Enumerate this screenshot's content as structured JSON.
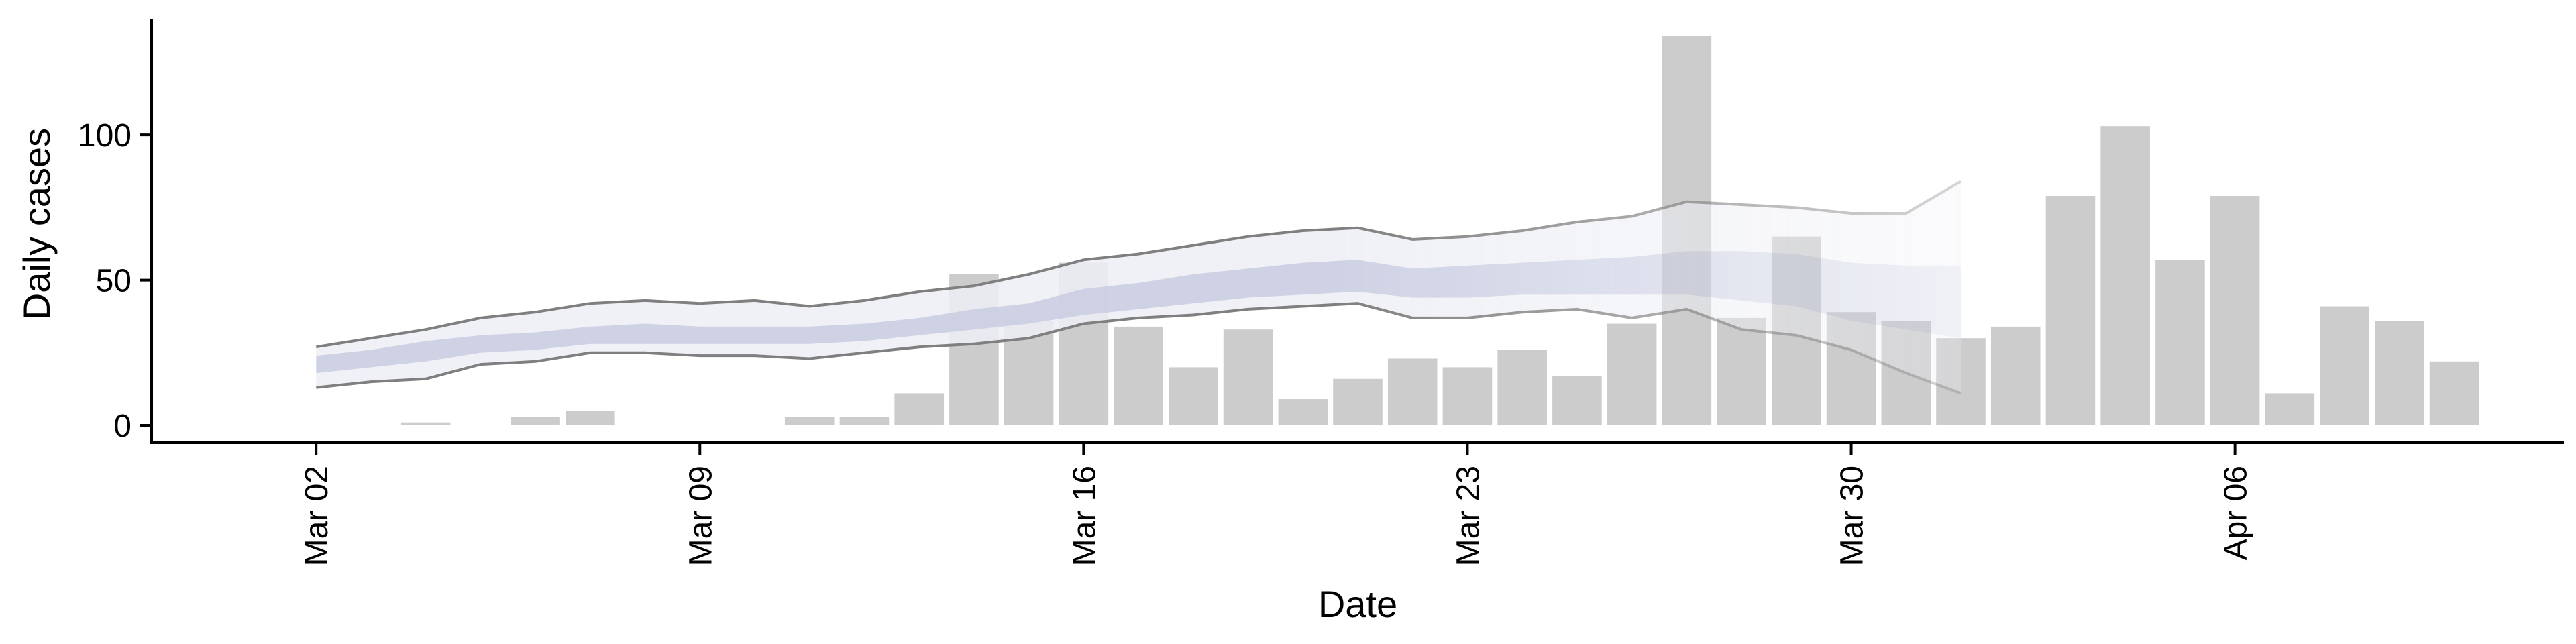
{
  "chart_data": {
    "type": "bar",
    "title": "",
    "xlabel": "Date",
    "ylabel": "Daily cases",
    "ylim": [
      -6,
      140
    ],
    "xlim": [
      "2020-02-28",
      "2020-04-12"
    ],
    "grid": false,
    "legend": "none",
    "y_ticks": [
      0,
      50,
      100
    ],
    "x_ticks": [
      {
        "date": "2020-03-02",
        "label": "Mar 02"
      },
      {
        "date": "2020-03-09",
        "label": "Mar 09"
      },
      {
        "date": "2020-03-16",
        "label": "Mar 16"
      },
      {
        "date": "2020-03-23",
        "label": "Mar 23"
      },
      {
        "date": "2020-03-30",
        "label": "Mar 30"
      },
      {
        "date": "2020-04-06",
        "label": "Apr 06"
      }
    ],
    "bars": [
      {
        "date": "2020-03-04",
        "value": 1
      },
      {
        "date": "2020-03-06",
        "value": 3
      },
      {
        "date": "2020-03-07",
        "value": 5
      },
      {
        "date": "2020-03-11",
        "value": 3
      },
      {
        "date": "2020-03-12",
        "value": 3
      },
      {
        "date": "2020-03-13",
        "value": 11
      },
      {
        "date": "2020-03-14",
        "value": 52
      },
      {
        "date": "2020-03-15",
        "value": 36
      },
      {
        "date": "2020-03-16",
        "value": 56
      },
      {
        "date": "2020-03-17",
        "value": 34
      },
      {
        "date": "2020-03-18",
        "value": 20
      },
      {
        "date": "2020-03-19",
        "value": 33
      },
      {
        "date": "2020-03-20",
        "value": 9
      },
      {
        "date": "2020-03-21",
        "value": 16
      },
      {
        "date": "2020-03-22",
        "value": 23
      },
      {
        "date": "2020-03-23",
        "value": 20
      },
      {
        "date": "2020-03-24",
        "value": 26
      },
      {
        "date": "2020-03-25",
        "value": 17
      },
      {
        "date": "2020-03-26",
        "value": 35
      },
      {
        "date": "2020-03-27",
        "value": 134
      },
      {
        "date": "2020-03-28",
        "value": 37
      },
      {
        "date": "2020-03-29",
        "value": 65
      },
      {
        "date": "2020-03-30",
        "value": 39
      },
      {
        "date": "2020-03-31",
        "value": 36
      },
      {
        "date": "2020-04-01",
        "value": 30
      },
      {
        "date": "2020-04-02",
        "value": 34
      },
      {
        "date": "2020-04-03",
        "value": 79
      },
      {
        "date": "2020-04-04",
        "value": 103
      },
      {
        "date": "2020-04-05",
        "value": 57
      },
      {
        "date": "2020-04-06",
        "value": 79
      },
      {
        "date": "2020-04-07",
        "value": 11
      },
      {
        "date": "2020-04-08",
        "value": 41
      },
      {
        "date": "2020-04-09",
        "value": 36
      },
      {
        "date": "2020-04-10",
        "value": 22
      }
    ],
    "band_dates": [
      "2020-03-02",
      "2020-03-03",
      "2020-03-04",
      "2020-03-05",
      "2020-03-06",
      "2020-03-07",
      "2020-03-08",
      "2020-03-09",
      "2020-03-10",
      "2020-03-11",
      "2020-03-12",
      "2020-03-13",
      "2020-03-14",
      "2020-03-15",
      "2020-03-16",
      "2020-03-17",
      "2020-03-18",
      "2020-03-19",
      "2020-03-20",
      "2020-03-21",
      "2020-03-22",
      "2020-03-23",
      "2020-03-24",
      "2020-03-25",
      "2020-03-26",
      "2020-03-27",
      "2020-03-28",
      "2020-03-29",
      "2020-03-30",
      "2020-03-31",
      "2020-04-01"
    ],
    "outer_upper": [
      27,
      30,
      33,
      37,
      39,
      42,
      43,
      42,
      43,
      41,
      43,
      46,
      48,
      52,
      57,
      59,
      62,
      65,
      67,
      68,
      64,
      65,
      67,
      70,
      72,
      77,
      76,
      75,
      73,
      73,
      84
    ],
    "outer_lower": [
      13,
      15,
      16,
      21,
      22,
      25,
      25,
      24,
      24,
      23,
      25,
      27,
      28,
      30,
      35,
      37,
      38,
      40,
      41,
      42,
      37,
      37,
      39,
      40,
      37,
      40,
      33,
      31,
      26,
      18,
      11
    ],
    "inner_upper": [
      24,
      26,
      29,
      31,
      32,
      34,
      35,
      34,
      34,
      34,
      35,
      37,
      40,
      42,
      47,
      49,
      52,
      54,
      56,
      57,
      54,
      55,
      56,
      57,
      58,
      60,
      60,
      59,
      56,
      55,
      55
    ],
    "inner_lower": [
      18,
      20,
      22,
      25,
      26,
      28,
      28,
      28,
      28,
      28,
      29,
      31,
      33,
      35,
      38,
      40,
      42,
      44,
      45,
      46,
      44,
      44,
      45,
      45,
      45,
      45,
      43,
      41,
      36,
      33,
      30
    ],
    "colors": {
      "bar": "#cccccc",
      "band_outer": "#edeef5",
      "band_inner": "#c9cee2",
      "bound_line": "#7f7f7f",
      "axis": "#000000"
    }
  }
}
